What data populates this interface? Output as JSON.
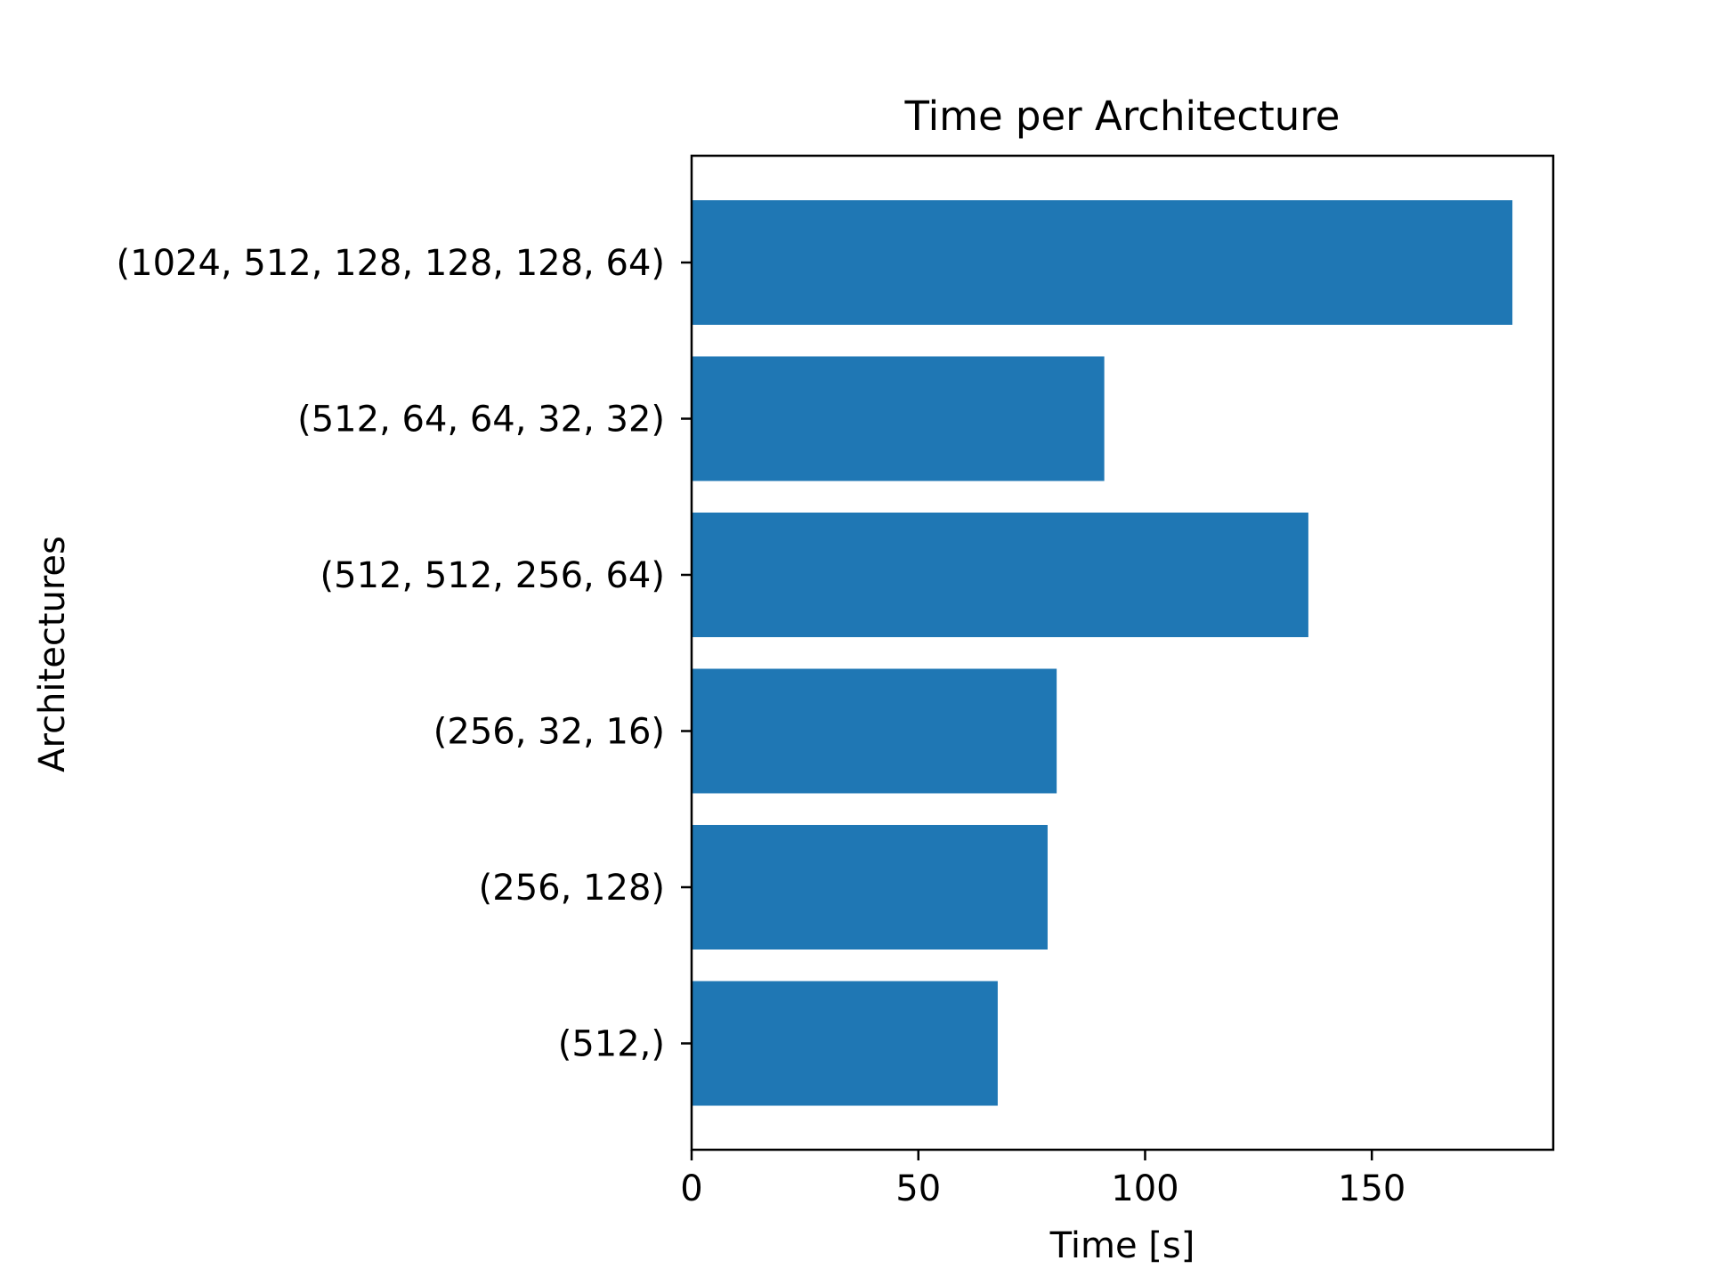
{
  "chart_data": {
    "type": "bar",
    "orientation": "horizontal",
    "title": "Time per Architecture",
    "xlabel": "Time [s]",
    "ylabel": "Architectures",
    "categories": [
      "(1024, 512, 128, 128, 128, 64)",
      "(512, 64, 64, 32, 32)",
      "(512, 512, 256, 64)",
      "(256, 32, 16)",
      "(256, 128)",
      "(512,)"
    ],
    "values": [
      181.0,
      91.0,
      136.0,
      80.5,
      78.5,
      67.5
    ],
    "xlim": [
      0,
      190
    ],
    "xticks": [
      "0",
      "50",
      "100",
      "150"
    ],
    "grid": false,
    "bar_color": "#1f77b4"
  }
}
